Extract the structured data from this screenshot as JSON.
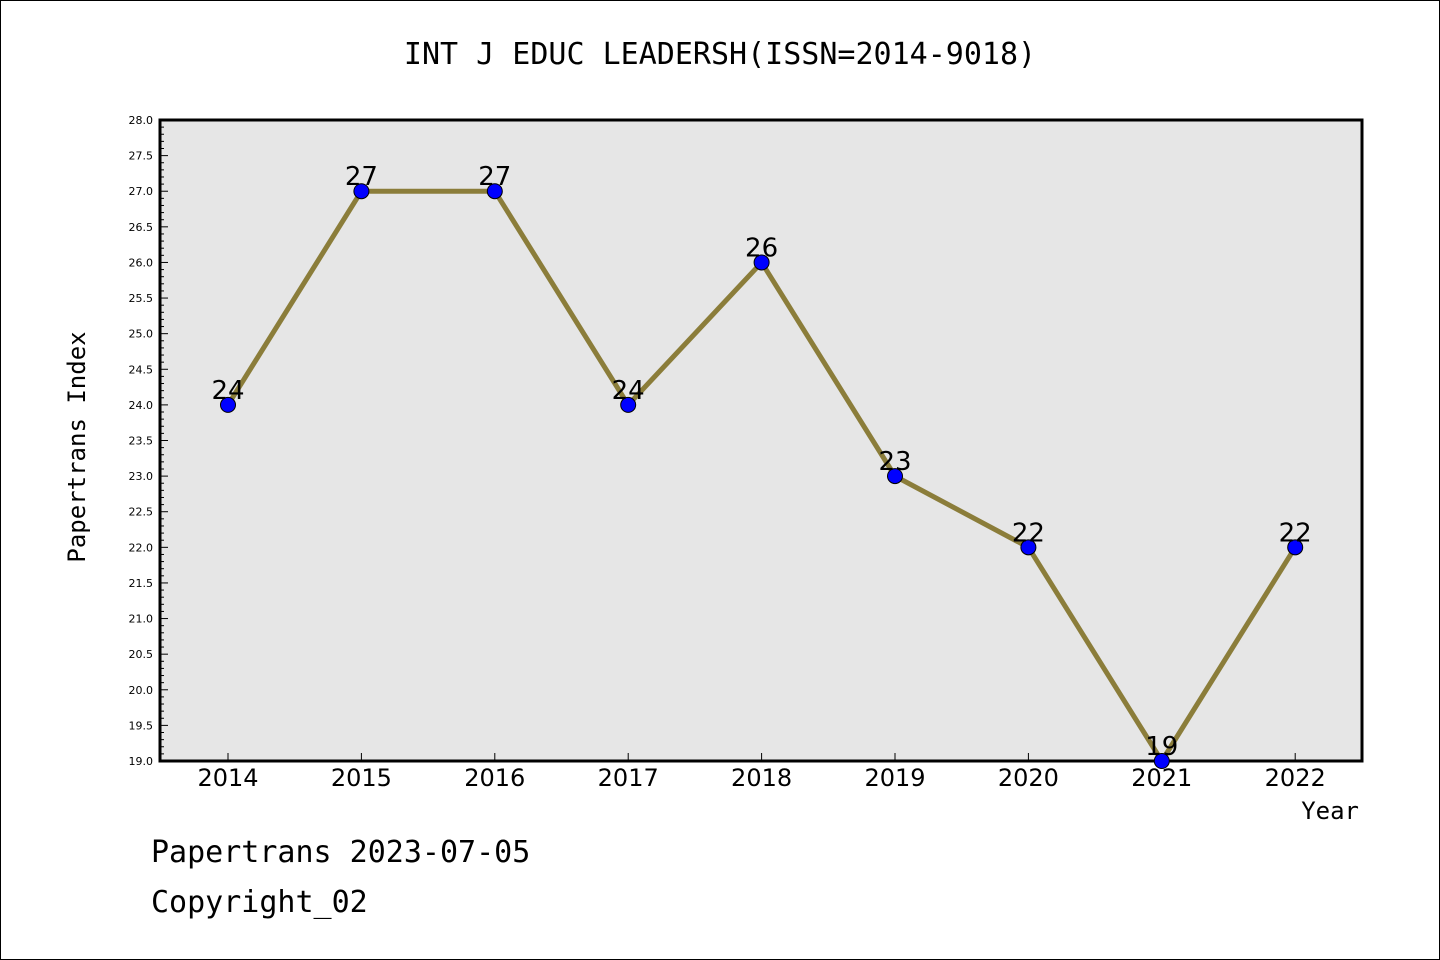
{
  "chart_data": {
    "type": "line",
    "title": "INT J EDUC LEADERSH(ISSN=2014-9018)",
    "xlabel": "Year",
    "ylabel": "Papertrans Index",
    "categories": [
      "2014",
      "2015",
      "2016",
      "2017",
      "2018",
      "2019",
      "2020",
      "2021",
      "2022"
    ],
    "series": [
      {
        "values": [
          24,
          27,
          27,
          24,
          26,
          23,
          22,
          19,
          22
        ]
      }
    ],
    "data_labels": [
      "24",
      "27",
      "27",
      "24",
      "26",
      "23",
      "22",
      "19",
      "22"
    ],
    "ylim": [
      19.0,
      28.0
    ],
    "y_ticks": [
      "19.0",
      "19.5",
      "20.0",
      "20.5",
      "21.0",
      "21.5",
      "22.0",
      "22.5",
      "23.0",
      "23.5",
      "24.0",
      "24.5",
      "25.0",
      "25.5",
      "26.0",
      "26.5",
      "27.0",
      "27.5",
      "28.0"
    ],
    "grid": false,
    "colors": {
      "line": "#8b7d3a",
      "marker": "#0000ff",
      "plot_background": "#e6e6e6"
    }
  },
  "footer": {
    "line1": "Papertrans 2023-07-05",
    "line2": "Copyright_02"
  }
}
